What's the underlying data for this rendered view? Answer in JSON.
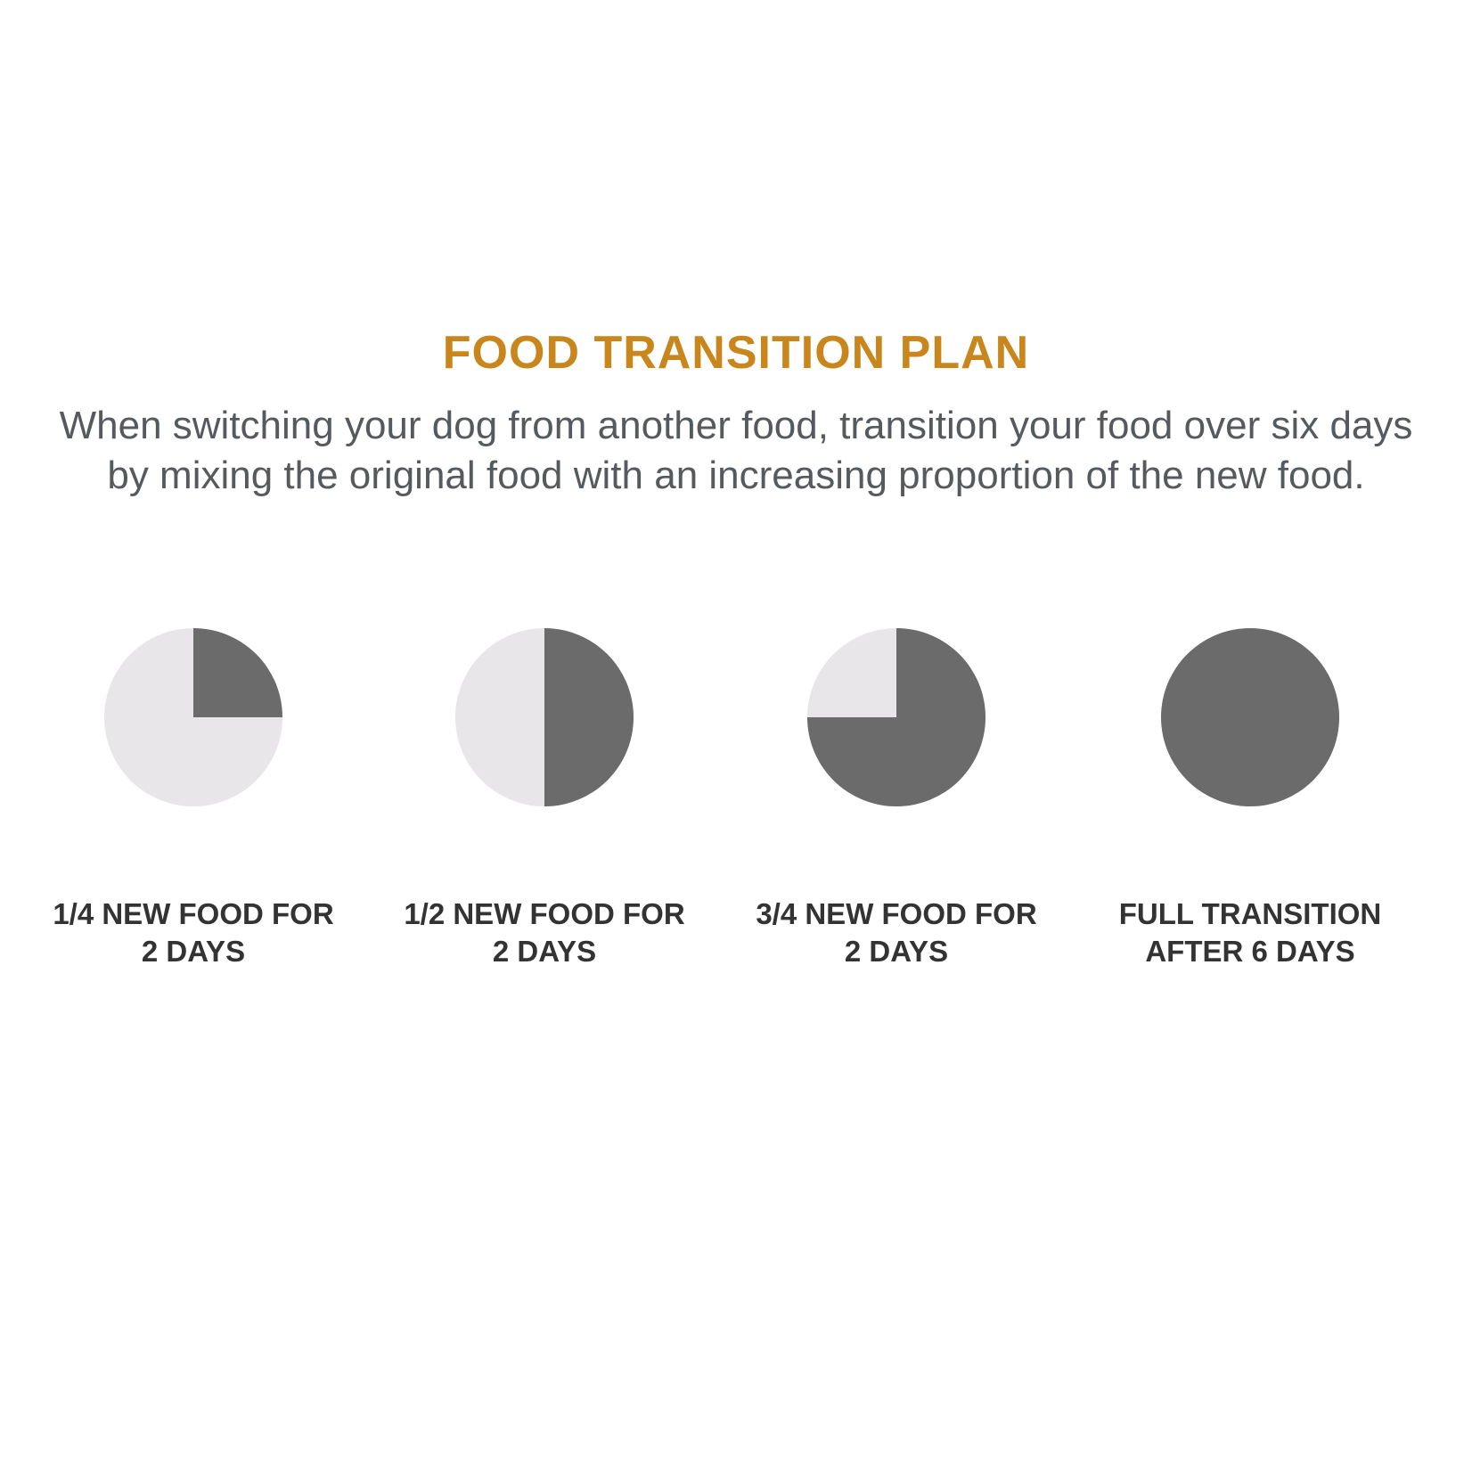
{
  "title": "FOOD TRANSITION PLAN",
  "description": "When switching your dog from another food, transition your food over six days by mixing the original food with an increasing proportion of the new food.",
  "colors": {
    "title": "#c8861c",
    "new_food": "#6b6b6b",
    "original_food": "#e8e6e8"
  },
  "chart_data": [
    {
      "type": "pie",
      "values": [
        0.25,
        0.75
      ],
      "label": "1/4 NEW FOOD FOR 2 DAYS"
    },
    {
      "type": "pie",
      "values": [
        0.5,
        0.5
      ],
      "label": "1/2 NEW FOOD FOR 2 DAYS"
    },
    {
      "type": "pie",
      "values": [
        0.75,
        0.25
      ],
      "label": "3/4 NEW FOOD FOR 2 DAYS"
    },
    {
      "type": "pie",
      "values": [
        1.0,
        0.0
      ],
      "label": "FULL TRANSITION AFTER 6 DAYS"
    }
  ]
}
